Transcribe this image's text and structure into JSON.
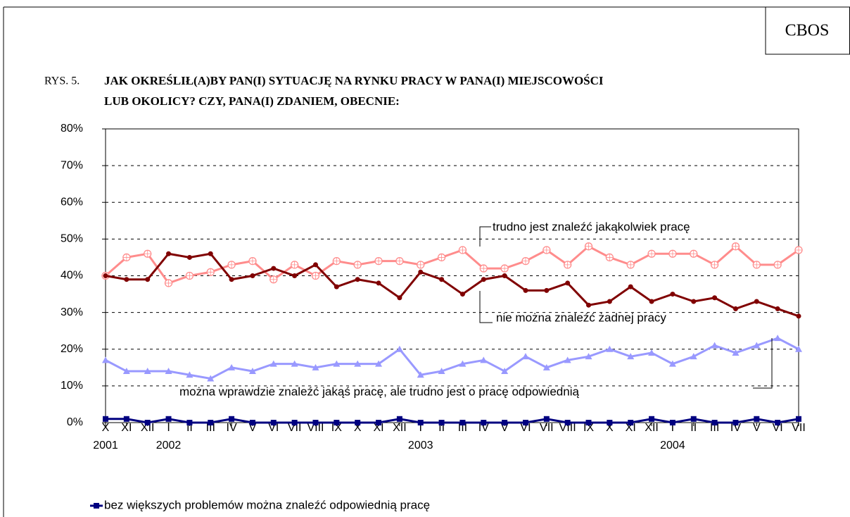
{
  "header": {
    "brand": "CBOS"
  },
  "chart_data": {
    "type": "line",
    "figure_label": "RYS. 5.",
    "title_lines": [
      "JAK OKREŚLIŁ(A)BY PAN(I) SYTUACJĘ NA RYNKU PRACY W PANA(I) MIEJSCOWOŚCI",
      "LUB OKOLICY? CZY, PANA(I) ZDANIEM, OBECNIE:"
    ],
    "categories": [
      "X",
      "XI",
      "XII",
      "I",
      "II",
      "III",
      "IV",
      "V",
      "VI",
      "VII",
      "VIII",
      "IX",
      "X",
      "XI",
      "XII",
      "I",
      "II",
      "III",
      "IV",
      "V",
      "VI",
      "VII",
      "VIII",
      "IX",
      "X",
      "XI",
      "XII",
      "I",
      "II",
      "III",
      "IV",
      "V",
      "VI",
      "VII"
    ],
    "category_years": [
      "2001",
      null,
      null,
      "2002",
      null,
      null,
      null,
      null,
      null,
      null,
      null,
      null,
      null,
      null,
      null,
      "2003",
      null,
      null,
      null,
      null,
      null,
      null,
      null,
      null,
      null,
      null,
      null,
      "2004",
      null,
      null,
      null,
      null,
      null,
      null
    ],
    "ylim": [
      0,
      80
    ],
    "yticks": [
      {
        "value": 0,
        "label": "0%"
      },
      {
        "value": 10,
        "label": "10%"
      },
      {
        "value": 20,
        "label": "20%"
      },
      {
        "value": 30,
        "label": "30%"
      },
      {
        "value": 40,
        "label": "40%"
      },
      {
        "value": 50,
        "label": "50%"
      },
      {
        "value": 60,
        "label": "60%"
      },
      {
        "value": 70,
        "label": "70%"
      },
      {
        "value": 80,
        "label": "80%"
      }
    ],
    "grid": true,
    "series": [
      {
        "name": "trudno jest znaleźć jakąkolwiek pracę",
        "color": "#ff8c8c",
        "marker": "open-circle",
        "label": "inline",
        "values": [
          40,
          45,
          46,
          38,
          40,
          41,
          43,
          44,
          39,
          43,
          40,
          44,
          43,
          44,
          44,
          43,
          45,
          47,
          42,
          42,
          44,
          47,
          43,
          48,
          45,
          43,
          46,
          46,
          46,
          43,
          48,
          43,
          43,
          47
        ]
      },
      {
        "name": "nie można znaleźć żadnej pracy",
        "color": "#800000",
        "marker": "circle",
        "label": "inline",
        "values": [
          40,
          39,
          39,
          46,
          45,
          46,
          39,
          40,
          42,
          40,
          43,
          37,
          39,
          38,
          34,
          41,
          39,
          35,
          39,
          40,
          36,
          36,
          38,
          32,
          33,
          37,
          33,
          35,
          33,
          34,
          31,
          33,
          31,
          29
        ]
      },
      {
        "name": "można wprawdzie znaleźć jakąś pracę, ale trudno jest o pracę odpowiednią",
        "color": "#9999ff",
        "marker": "triangle",
        "label": "inline",
        "values": [
          17,
          14,
          14,
          14,
          13,
          12,
          15,
          14,
          16,
          16,
          15,
          16,
          16,
          16,
          20,
          13,
          14,
          16,
          17,
          14,
          18,
          15,
          17,
          18,
          20,
          18,
          19,
          16,
          18,
          21,
          19,
          21,
          23,
          20
        ]
      },
      {
        "name": "bez większych problemów można znaleźć odpowiednią pracę",
        "color": "#000080",
        "marker": "square",
        "label": "legend",
        "values": [
          1,
          1,
          0,
          1,
          0,
          0,
          1,
          0,
          0,
          0,
          0,
          0,
          0,
          0,
          1,
          0,
          0,
          0,
          0,
          0,
          0,
          1,
          0,
          0,
          0,
          0,
          1,
          0,
          1,
          0,
          0,
          1,
          0,
          1
        ]
      }
    ]
  }
}
